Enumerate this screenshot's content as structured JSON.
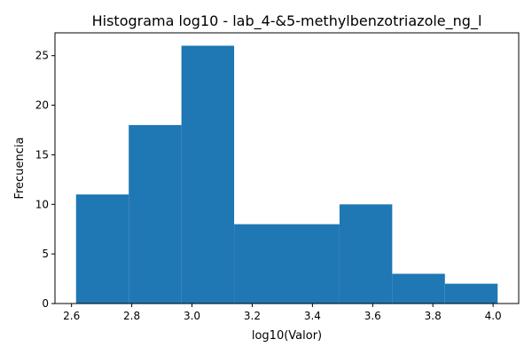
{
  "chart_data": {
    "type": "bar",
    "title": "Histograma log10 - lab_4-&5-methylbenzotriazole_ng_l",
    "xlabel": "log10(Valor)",
    "ylabel": "Frecuencia",
    "bins": [
      {
        "x0": 2.615,
        "x1": 2.79,
        "count": 11
      },
      {
        "x0": 2.79,
        "x1": 2.965,
        "count": 18
      },
      {
        "x0": 2.965,
        "x1": 3.14,
        "count": 26
      },
      {
        "x0": 3.14,
        "x1": 3.315,
        "count": 8
      },
      {
        "x0": 3.315,
        "x1": 3.49,
        "count": 8
      },
      {
        "x0": 3.49,
        "x1": 3.665,
        "count": 10
      },
      {
        "x0": 3.665,
        "x1": 3.84,
        "count": 3
      },
      {
        "x0": 3.84,
        "x1": 4.015,
        "count": 2
      }
    ],
    "xlim": [
      2.545,
      4.085
    ],
    "ylim": [
      0,
      27.3
    ],
    "xticks": [
      2.6,
      2.8,
      3.0,
      3.2,
      3.4,
      3.6,
      3.8,
      4.0
    ],
    "xtick_labels": [
      "2.6",
      "2.8",
      "3.0",
      "3.2",
      "3.4",
      "3.6",
      "3.8",
      "4.0"
    ],
    "yticks": [
      0,
      5,
      10,
      15,
      20,
      25
    ],
    "ytick_labels": [
      "0",
      "5",
      "10",
      "15",
      "20",
      "25"
    ],
    "grid": false,
    "legend": "none",
    "colors": {
      "bar": "#1f77b4",
      "axis": "#000000",
      "background": "#ffffff"
    }
  }
}
